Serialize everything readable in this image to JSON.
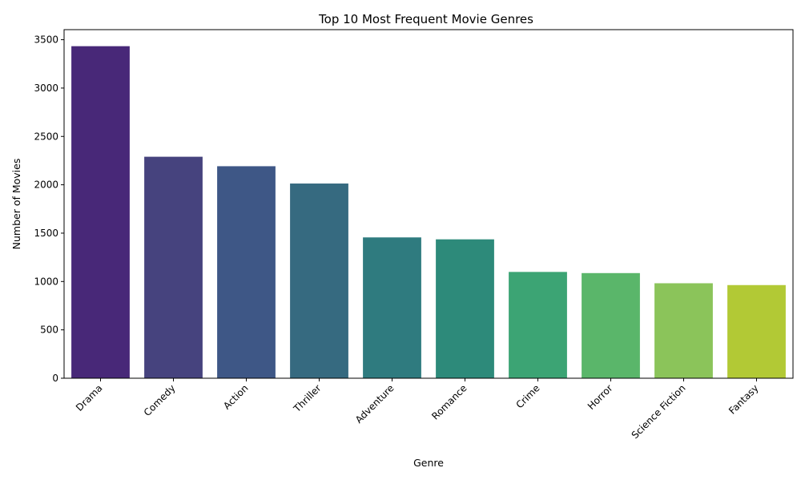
{
  "chart_data": {
    "type": "bar",
    "title": "Top 10 Most Frequent Movie Genres",
    "xlabel": "Genre",
    "ylabel": "Number of Movies",
    "categories": [
      "Drama",
      "Comedy",
      "Action",
      "Thriller",
      "Adventure",
      "Romance",
      "Crime",
      "Horror",
      "Science Fiction",
      "Fantasy"
    ],
    "values": [
      3433,
      2290,
      2192,
      2013,
      1456,
      1436,
      1099,
      1087,
      982,
      963
    ],
    "colors": [
      "#482878",
      "#46437e",
      "#3e5786",
      "#366a80",
      "#2f7b7f",
      "#2d8a7a",
      "#3ca474",
      "#5ab66a",
      "#8bc45a",
      "#b2c935"
    ],
    "ylim": [
      0,
      3604
    ],
    "yticks": [
      0,
      500,
      1000,
      1500,
      2000,
      2500,
      3000,
      3500
    ],
    "grid": false,
    "legend": "none"
  }
}
